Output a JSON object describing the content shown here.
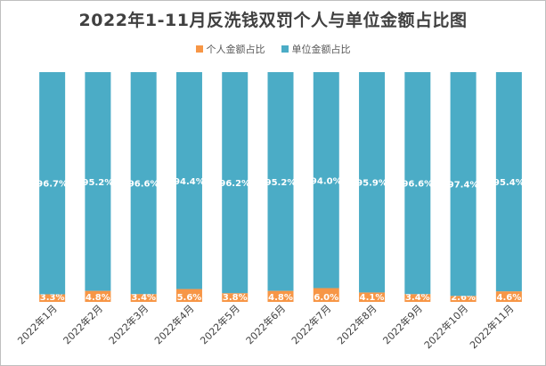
{
  "colors": {
    "individual": "#F79646",
    "unit": "#4BACC6",
    "text": "#404040"
  },
  "chart_data": {
    "type": "bar",
    "stacked": true,
    "title": "2022年1-11月反洗钱双罚个人与单位金额占比图",
    "categories": [
      "2022年1月",
      "2022年2月",
      "2022年3月",
      "2022年4月",
      "2022年5月",
      "2022年6月",
      "2022年7月",
      "2022年8月",
      "2022年9月",
      "2022年10月",
      "2022年11月"
    ],
    "series": [
      {
        "name": "个人金额占比",
        "values": [
          3.3,
          4.8,
          3.4,
          5.6,
          3.8,
          4.8,
          6.0,
          4.1,
          3.4,
          2.6,
          4.6
        ],
        "labels": [
          "3.3%",
          "4.8%",
          "3.4%",
          "5.6%",
          "3.8%",
          "4.8%",
          "6.0%",
          "4.1%",
          "3.4%",
          "2.6%",
          "4.6%"
        ]
      },
      {
        "name": "单位金额占比",
        "values": [
          96.7,
          95.2,
          96.6,
          94.4,
          96.2,
          95.2,
          94.0,
          95.9,
          96.6,
          97.4,
          95.4
        ],
        "labels": [
          "96.7%",
          "95.2%",
          "96.6%",
          "94.4%",
          "96.2%",
          "95.2%",
          "94.0%",
          "95.9%",
          "96.6%",
          "97.4%",
          "95.4%"
        ]
      }
    ],
    "ylim": [
      0,
      100
    ],
    "grid": false,
    "legend_position": "top"
  }
}
